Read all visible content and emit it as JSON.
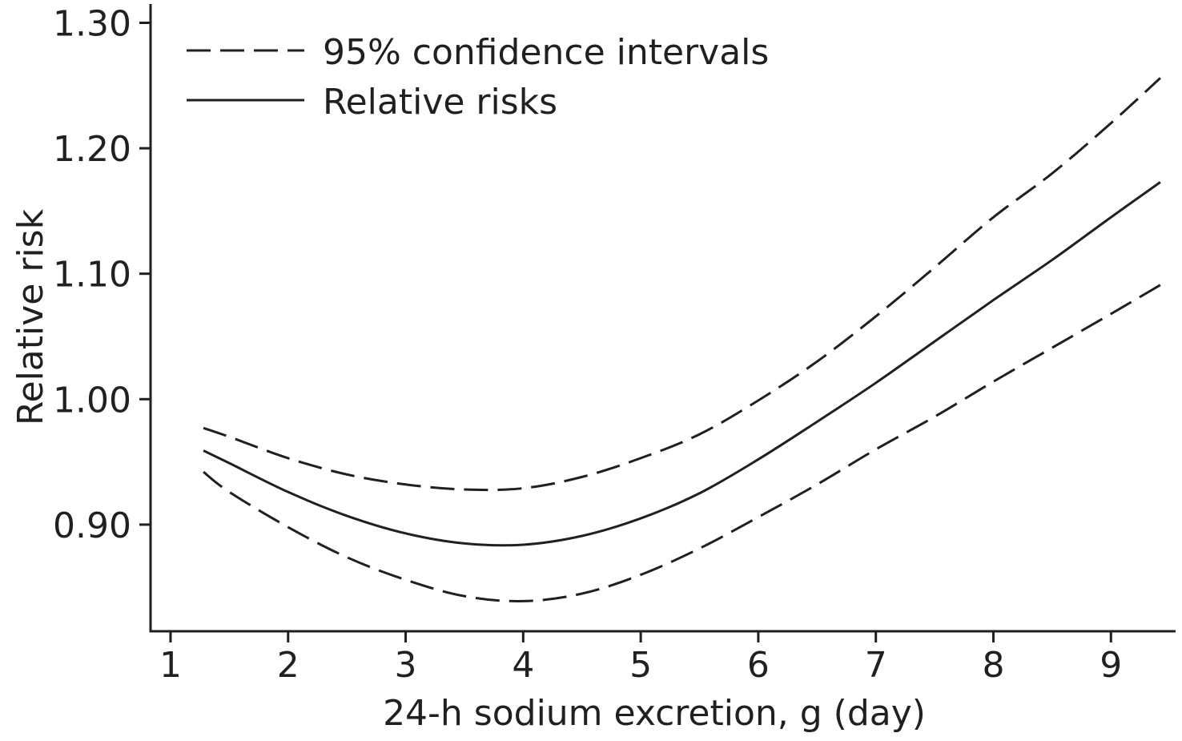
{
  "chart_data": {
    "type": "line",
    "title": "",
    "xlabel": "24-h sodium excretion, g (day)",
    "ylabel": "Relative risk",
    "xlim": [
      0.83,
      9.55
    ],
    "ylim": [
      0.815,
      1.315
    ],
    "x_ticks": [
      1,
      2,
      3,
      4,
      5,
      6,
      7,
      8,
      9
    ],
    "x_tick_labels": [
      "1",
      "2",
      "3",
      "4",
      "5",
      "6",
      "7",
      "8",
      "9"
    ],
    "y_ticks": [
      0.9,
      1.0,
      1.1,
      1.2,
      1.3
    ],
    "y_tick_labels": [
      "0.90",
      "1.00",
      "1.10",
      "1.20",
      "1.30"
    ],
    "grid": false,
    "legend_position": "top-left",
    "line_color": "#231f20",
    "series": [
      {
        "name": "95% confidence intervals",
        "style": "dashed",
        "role": "upper",
        "x": [
          1.28,
          1.5,
          2.0,
          2.5,
          3.0,
          3.5,
          4.0,
          4.5,
          5.0,
          5.5,
          6.0,
          6.5,
          7.0,
          7.5,
          8.0,
          8.5,
          9.0,
          9.42
        ],
        "y": [
          0.977,
          0.97,
          0.953,
          0.94,
          0.932,
          0.928,
          0.929,
          0.938,
          0.953,
          0.972,
          0.999,
          1.03,
          1.066,
          1.105,
          1.145,
          1.18,
          1.22,
          1.256
        ]
      },
      {
        "name": "Relative risks",
        "style": "solid",
        "x": [
          1.28,
          1.5,
          2.0,
          2.5,
          3.0,
          3.5,
          4.0,
          4.5,
          5.0,
          5.5,
          6.0,
          6.5,
          7.0,
          7.5,
          8.0,
          8.5,
          9.0,
          9.42
        ],
        "y": [
          0.959,
          0.949,
          0.926,
          0.907,
          0.893,
          0.885,
          0.884,
          0.891,
          0.905,
          0.925,
          0.952,
          0.982,
          1.013,
          1.046,
          1.079,
          1.111,
          1.145,
          1.173
        ]
      },
      {
        "name": "95% confidence intervals",
        "style": "dashed",
        "role": "lower",
        "x": [
          1.28,
          1.5,
          2.0,
          2.5,
          3.0,
          3.5,
          4.0,
          4.5,
          5.0,
          5.5,
          6.0,
          6.5,
          7.0,
          7.5,
          8.0,
          8.5,
          9.0,
          9.42
        ],
        "y": [
          0.942,
          0.926,
          0.898,
          0.874,
          0.856,
          0.843,
          0.839,
          0.845,
          0.86,
          0.881,
          0.906,
          0.932,
          0.96,
          0.986,
          1.014,
          1.041,
          1.068,
          1.091
        ]
      }
    ],
    "legend": [
      {
        "label": "95% confidence intervals",
        "style": "dashed"
      },
      {
        "label": "Relative risks",
        "style": "solid"
      }
    ]
  }
}
